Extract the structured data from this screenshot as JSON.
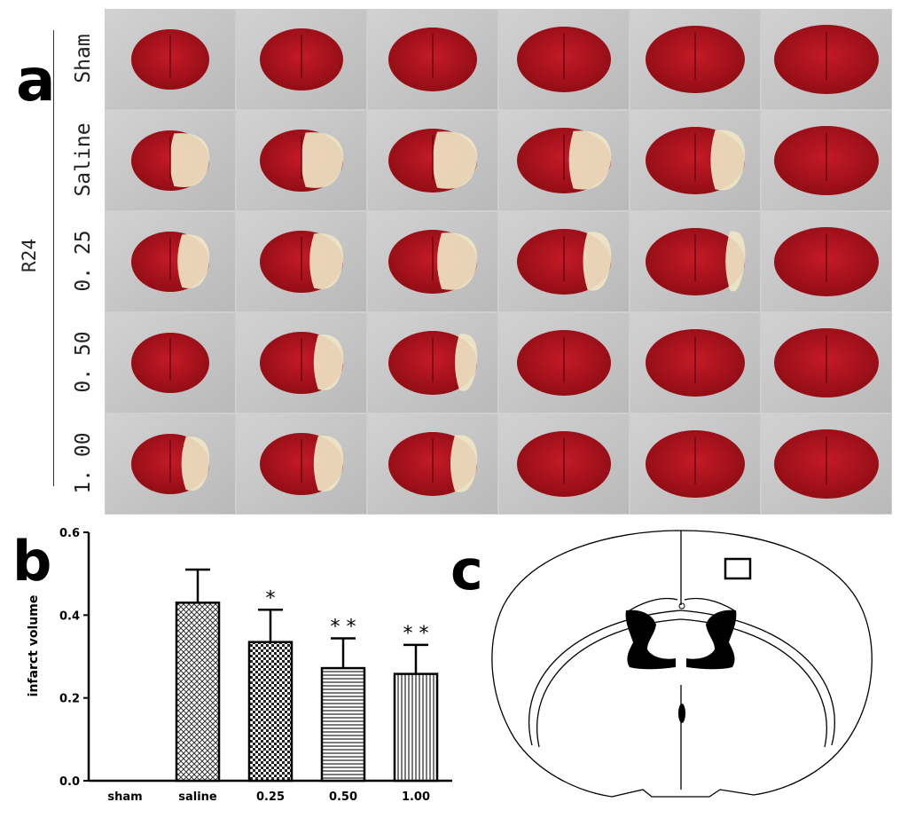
{
  "panels": {
    "a": {
      "letter": "a",
      "group_label": "R24",
      "row_labels": [
        "Sham",
        "Saline",
        "0. 25",
        "0. 50",
        "1. 00"
      ],
      "columns": 6,
      "colors": {
        "tissue_red": "#b8141f",
        "tissue_dark": "#8e0c14",
        "infarct_pale": "#efe4c4",
        "background": "#c4c4c4"
      }
    },
    "b": {
      "letter": "b"
    },
    "c": {
      "letter": "c"
    }
  },
  "chart_data": {
    "type": "bar",
    "categories": [
      "sham",
      "saline",
      "0.25",
      "0.50",
      "1.00"
    ],
    "values": [
      0,
      0.43,
      0.335,
      0.272,
      0.258
    ],
    "errors": [
      0,
      0.08,
      0.078,
      0.072,
      0.07
    ],
    "significance": [
      "",
      "",
      "*",
      "* *",
      "* *"
    ],
    "patterns": [
      "none",
      "crosshatch",
      "checker",
      "horizontal",
      "vertical"
    ],
    "xlabel": "",
    "ylabel": "infarct volume",
    "ylim": [
      0,
      0.6
    ],
    "yticks": [
      "0.0",
      "0.2",
      "0.4",
      "0.6"
    ],
    "grid": false
  }
}
